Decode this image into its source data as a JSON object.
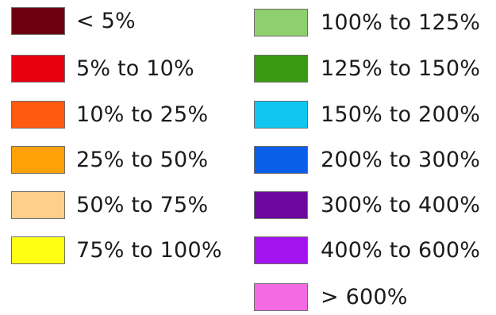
{
  "legend": {
    "left_column": [
      {
        "label": "< 5%",
        "color": "#6d0010"
      },
      {
        "label": "5% to 10%",
        "color": "#e8000e"
      },
      {
        "label": "10% to 25%",
        "color": "#ff5a10"
      },
      {
        "label": "25% to 50%",
        "color": "#ffa20a"
      },
      {
        "label": "50% to 75%",
        "color": "#ffcf8a"
      },
      {
        "label": "75% to 100%",
        "color": "#ffff14"
      }
    ],
    "right_column": [
      {
        "label": "100% to 125%",
        "color": "#8fd06e"
      },
      {
        "label": "125% to 150%",
        "color": "#3a9a12"
      },
      {
        "label": "150% to 200%",
        "color": "#12c6f2"
      },
      {
        "label": "200% to 300%",
        "color": "#0a5ee8"
      },
      {
        "label": "300% to 400%",
        "color": "#6d079e"
      },
      {
        "label": "400% to 600%",
        "color": "#a313ee"
      },
      {
        "label": "> 600%",
        "color": "#f36be2"
      }
    ]
  }
}
